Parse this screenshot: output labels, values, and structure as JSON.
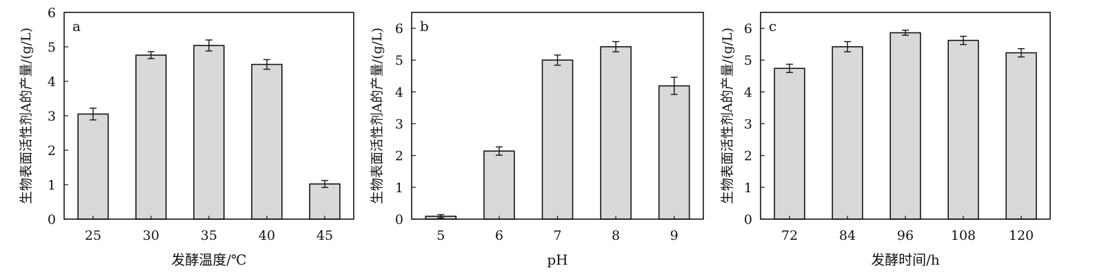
{
  "colors": {
    "bar_fill": "#d9d9d9",
    "bar_stroke": "#111111",
    "axis": "#111111",
    "error_bar": "#111111"
  },
  "chart_data": [
    {
      "panel_label": "a",
      "type": "bar",
      "categories": [
        "25",
        "30",
        "35",
        "40",
        "45"
      ],
      "values": [
        3.05,
        4.76,
        5.04,
        4.49,
        1.02
      ],
      "errors": [
        0.17,
        0.1,
        0.16,
        0.14,
        0.1
      ],
      "xlabel": "发酵温度/℃",
      "ylabel": "生物表面活性剂A的产量/(g/L)",
      "ylim": [
        0,
        6
      ],
      "yticks": [
        0,
        1,
        2,
        3,
        4,
        5,
        6
      ],
      "grid": false
    },
    {
      "panel_label": "b",
      "type": "bar",
      "categories": [
        "5",
        "6",
        "7",
        "8",
        "9"
      ],
      "values": [
        0.09,
        2.14,
        5.0,
        5.42,
        4.19
      ],
      "errors": [
        0.05,
        0.13,
        0.16,
        0.16,
        0.27
      ],
      "xlabel": "pH",
      "ylabel": "生物表面活性剂A的产量/(g/L)",
      "ylim": [
        0,
        6.5
      ],
      "yticks": [
        0,
        1,
        2,
        3,
        4,
        5,
        6
      ],
      "grid": false
    },
    {
      "panel_label": "c",
      "type": "bar",
      "categories": [
        "72",
        "84",
        "96",
        "108",
        "120"
      ],
      "values": [
        4.74,
        5.42,
        5.86,
        5.62,
        5.23
      ],
      "errors": [
        0.13,
        0.16,
        0.08,
        0.13,
        0.13
      ],
      "xlabel": "发酵时间/h",
      "ylabel": "生物表面活性剂A的产量/(g/L)",
      "ylim": [
        0,
        6.5
      ],
      "yticks": [
        0,
        1,
        2,
        3,
        4,
        5,
        6
      ],
      "grid": false
    }
  ]
}
